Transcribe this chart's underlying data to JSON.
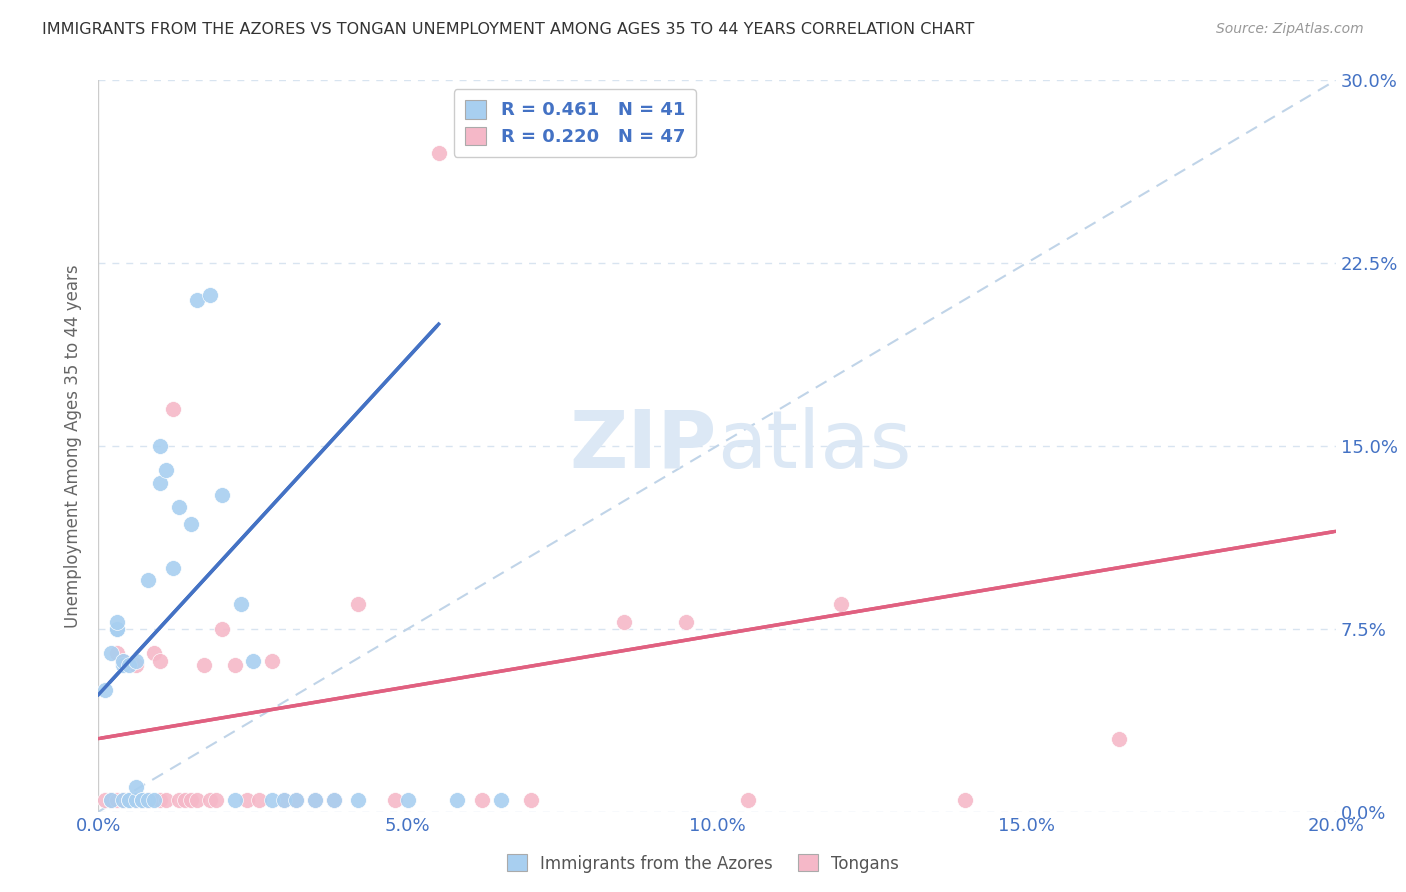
{
  "title": "IMMIGRANTS FROM THE AZORES VS TONGAN UNEMPLOYMENT AMONG AGES 35 TO 44 YEARS CORRELATION CHART",
  "source": "Source: ZipAtlas.com",
  "ylabel": "Unemployment Among Ages 35 to 44 years",
  "xlabel_ticks": [
    "0.0%",
    "5.0%",
    "10.0%",
    "15.0%",
    "20.0%"
  ],
  "xlabel_vals": [
    0.0,
    0.05,
    0.1,
    0.15,
    0.2
  ],
  "ylabel_ticks_right": [
    "0.0%",
    "7.5%",
    "15.0%",
    "22.5%",
    "30.0%"
  ],
  "ylabel_vals_right": [
    0.0,
    0.075,
    0.15,
    0.225,
    0.3
  ],
  "xlim": [
    0.0,
    0.2
  ],
  "ylim": [
    -0.01,
    0.32
  ],
  "ylim_plot": [
    0.0,
    0.3
  ],
  "azores_R": 0.461,
  "azores_N": 41,
  "tongan_R": 0.22,
  "tongan_N": 47,
  "azores_color": "#a8cff0",
  "tongan_color": "#f5b8c8",
  "trendline_azores_color": "#4472C4",
  "trendline_tongan_color": "#E06080",
  "diagonal_color": "#c0d4e8",
  "background_color": "#ffffff",
  "grid_color": "#d8e4f0",
  "watermark_color": "#dce8f5",
  "azores_x": [
    0.001,
    0.002,
    0.002,
    0.003,
    0.003,
    0.003,
    0.004,
    0.004,
    0.004,
    0.005,
    0.005,
    0.005,
    0.006,
    0.006,
    0.006,
    0.007,
    0.007,
    0.008,
    0.008,
    0.009,
    0.01,
    0.01,
    0.011,
    0.012,
    0.013,
    0.015,
    0.016,
    0.018,
    0.02,
    0.022,
    0.023,
    0.025,
    0.028,
    0.03,
    0.032,
    0.035,
    0.038,
    0.042,
    0.05,
    0.058,
    0.065
  ],
  "azores_y": [
    0.05,
    0.005,
    0.065,
    0.075,
    0.075,
    0.078,
    0.005,
    0.06,
    0.062,
    0.005,
    0.005,
    0.06,
    0.005,
    0.01,
    0.062,
    0.005,
    0.005,
    0.005,
    0.095,
    0.005,
    0.135,
    0.15,
    0.14,
    0.1,
    0.125,
    0.118,
    0.21,
    0.212,
    0.13,
    0.005,
    0.085,
    0.062,
    0.005,
    0.005,
    0.005,
    0.005,
    0.005,
    0.005,
    0.005,
    0.005,
    0.005
  ],
  "tongan_x": [
    0.001,
    0.002,
    0.002,
    0.003,
    0.003,
    0.004,
    0.004,
    0.004,
    0.005,
    0.005,
    0.006,
    0.006,
    0.007,
    0.007,
    0.008,
    0.009,
    0.01,
    0.01,
    0.011,
    0.012,
    0.013,
    0.014,
    0.015,
    0.016,
    0.017,
    0.018,
    0.019,
    0.02,
    0.022,
    0.024,
    0.026,
    0.028,
    0.03,
    0.032,
    0.035,
    0.038,
    0.042,
    0.048,
    0.055,
    0.062,
    0.07,
    0.085,
    0.095,
    0.105,
    0.12,
    0.14,
    0.165
  ],
  "tongan_y": [
    0.005,
    0.005,
    0.005,
    0.005,
    0.065,
    0.005,
    0.005,
    0.062,
    0.005,
    0.005,
    0.005,
    0.06,
    0.005,
    0.005,
    0.005,
    0.065,
    0.005,
    0.062,
    0.005,
    0.165,
    0.005,
    0.005,
    0.005,
    0.005,
    0.06,
    0.005,
    0.005,
    0.075,
    0.06,
    0.005,
    0.005,
    0.062,
    0.005,
    0.005,
    0.005,
    0.005,
    0.085,
    0.005,
    0.27,
    0.005,
    0.005,
    0.078,
    0.078,
    0.005,
    0.085,
    0.005,
    0.03
  ],
  "trendline_azores_x0": 0.0,
  "trendline_azores_y0": 0.048,
  "trendline_azores_x1": 0.055,
  "trendline_azores_y1": 0.2,
  "trendline_tongan_x0": 0.0,
  "trendline_tongan_y0": 0.03,
  "trendline_tongan_x1": 0.2,
  "trendline_tongan_y1": 0.115
}
